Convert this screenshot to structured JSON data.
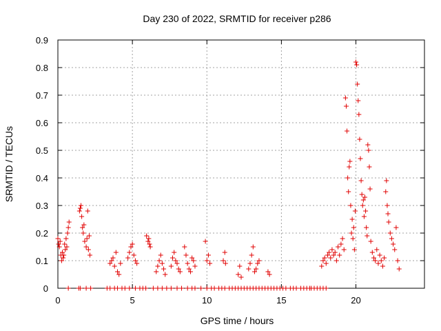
{
  "chart_data": {
    "type": "scatter",
    "title": "Day 230 of 2022, SRMTID for receiver p286",
    "xlabel": "GPS time / hours",
    "ylabel": "SRMTID / TECUs",
    "xlim": [
      0,
      24.6
    ],
    "ylim": [
      0,
      0.9
    ],
    "xticks": [
      0,
      5,
      10,
      15,
      20
    ],
    "yticks": [
      0,
      0.1,
      0.2,
      0.3,
      0.4,
      0.5,
      0.6,
      0.7,
      0.8,
      0.9
    ],
    "xtick_labels": [
      "0",
      "5",
      "10",
      "15",
      "20"
    ],
    "ytick_labels": [
      "0",
      "0.1",
      "0.2",
      "0.3",
      "0.4",
      "0.5",
      "0.6",
      "0.7",
      "0.8",
      "0.9"
    ],
    "grid": true,
    "marker": "+",
    "color": "#e00000",
    "series": [
      {
        "name": "SRMTID",
        "x": [
          0.0,
          0.05,
          0.1,
          0.15,
          0.2,
          0.25,
          0.3,
          0.35,
          0.4,
          0.45,
          0.5,
          0.55,
          0.6,
          0.65,
          0.7,
          0.75,
          1.45,
          1.5,
          1.55,
          1.6,
          1.65,
          1.7,
          1.75,
          1.8,
          1.9,
          1.95,
          2.0,
          2.05,
          2.1,
          2.15,
          3.5,
          3.6,
          3.7,
          3.8,
          3.9,
          4.0,
          4.1,
          4.2,
          4.7,
          4.8,
          4.9,
          5.0,
          5.1,
          5.2,
          5.3,
          5.95,
          6.05,
          6.1,
          6.15,
          6.2,
          6.6,
          6.7,
          6.8,
          6.9,
          7.0,
          7.1,
          7.2,
          7.6,
          7.7,
          7.8,
          7.9,
          8.0,
          8.1,
          8.2,
          8.5,
          8.6,
          8.7,
          8.8,
          8.9,
          9.0,
          9.1,
          9.2,
          9.9,
          10.0,
          10.1,
          10.2,
          11.1,
          11.2,
          11.25,
          12.1,
          12.2,
          12.3,
          12.8,
          12.9,
          13.0,
          13.1,
          13.2,
          13.3,
          13.4,
          13.5,
          14.1,
          14.2,
          17.7,
          17.8,
          17.9,
          18.0,
          18.1,
          18.2,
          18.3,
          18.4,
          18.5,
          18.6,
          18.7,
          18.8,
          18.9,
          19.0,
          19.1,
          19.2,
          19.3,
          19.35,
          19.4,
          19.45,
          19.5,
          19.55,
          19.6,
          19.65,
          19.7,
          19.75,
          19.8,
          19.85,
          19.9,
          19.95,
          20.0,
          20.05,
          20.1,
          20.15,
          20.2,
          20.25,
          20.3,
          20.35,
          20.4,
          20.45,
          20.5,
          20.55,
          20.6,
          20.65,
          20.7,
          20.75,
          20.8,
          20.85,
          20.9,
          20.95,
          21.0,
          21.1,
          21.2,
          21.3,
          21.4,
          21.5,
          21.6,
          21.7,
          21.8,
          21.9,
          22.0,
          22.05,
          22.1,
          22.15,
          22.2,
          22.3,
          22.4,
          22.5,
          22.6,
          22.7,
          22.8,
          22.9,
          0.7,
          1.4,
          1.5,
          1.9,
          2.2,
          3.3,
          3.5,
          3.8,
          4.0,
          4.3,
          4.5,
          4.8,
          5.2,
          5.5,
          5.7,
          5.9,
          6.4,
          6.7,
          7.0,
          7.3,
          7.6,
          8.0,
          8.3,
          8.7,
          9.0,
          9.2,
          9.6,
          10.0,
          10.3,
          10.5,
          10.8,
          11.0,
          11.2,
          11.5,
          11.7,
          11.9,
          12.1,
          12.3,
          12.5,
          12.7,
          12.9,
          13.1,
          13.3,
          13.5,
          13.7,
          13.9,
          14.1,
          14.3,
          14.5,
          14.7,
          14.9,
          15.1,
          15.3,
          15.6,
          15.8,
          16.0,
          16.3,
          16.5,
          16.7,
          16.9,
          17.0,
          17.2,
          17.4,
          17.6,
          17.8,
          18.0
        ],
        "y": [
          0.18,
          0.16,
          0.15,
          0.17,
          0.12,
          0.1,
          0.13,
          0.11,
          0.12,
          0.16,
          0.14,
          0.18,
          0.15,
          0.2,
          0.22,
          0.24,
          0.28,
          0.29,
          0.3,
          0.26,
          0.22,
          0.2,
          0.23,
          0.17,
          0.15,
          0.18,
          0.28,
          0.14,
          0.19,
          0.12,
          0.09,
          0.1,
          0.11,
          0.08,
          0.13,
          0.06,
          0.05,
          0.09,
          0.11,
          0.13,
          0.15,
          0.16,
          0.12,
          0.1,
          0.09,
          0.19,
          0.17,
          0.18,
          0.16,
          0.15,
          0.06,
          0.08,
          0.1,
          0.12,
          0.09,
          0.07,
          0.05,
          0.08,
          0.11,
          0.13,
          0.1,
          0.09,
          0.07,
          0.06,
          0.15,
          0.12,
          0.09,
          0.07,
          0.06,
          0.11,
          0.1,
          0.08,
          0.17,
          0.1,
          0.12,
          0.09,
          0.1,
          0.13,
          0.09,
          0.05,
          0.08,
          0.04,
          0.07,
          0.09,
          0.12,
          0.15,
          0.06,
          0.07,
          0.09,
          0.1,
          0.06,
          0.05,
          0.08,
          0.1,
          0.11,
          0.09,
          0.12,
          0.13,
          0.11,
          0.14,
          0.12,
          0.13,
          0.1,
          0.15,
          0.12,
          0.16,
          0.18,
          0.14,
          0.69,
          0.66,
          0.57,
          0.4,
          0.35,
          0.44,
          0.46,
          0.3,
          0.2,
          0.25,
          0.18,
          0.22,
          0.14,
          0.28,
          0.82,
          0.81,
          0.74,
          0.68,
          0.63,
          0.54,
          0.47,
          0.39,
          0.34,
          0.3,
          0.32,
          0.26,
          0.33,
          0.28,
          0.22,
          0.19,
          0.52,
          0.5,
          0.44,
          0.36,
          0.17,
          0.13,
          0.11,
          0.1,
          0.14,
          0.09,
          0.12,
          0.1,
          0.08,
          0.11,
          0.35,
          0.39,
          0.3,
          0.27,
          0.24,
          0.2,
          0.18,
          0.16,
          0.14,
          0.22,
          0.1,
          0.07,
          0,
          0,
          0,
          0,
          0,
          0,
          0,
          0,
          0,
          0,
          0,
          0,
          0,
          0,
          0,
          0,
          0,
          0,
          0,
          0,
          0,
          0,
          0,
          0,
          0,
          0,
          0,
          0,
          0,
          0,
          0,
          0,
          0,
          0,
          0,
          0,
          0,
          0,
          0,
          0,
          0,
          0,
          0,
          0,
          0,
          0,
          0,
          0,
          0,
          0,
          0,
          0,
          0,
          0,
          0,
          0,
          0,
          0,
          0,
          0,
          0,
          0,
          0,
          0,
          0,
          0
        ]
      }
    ]
  }
}
